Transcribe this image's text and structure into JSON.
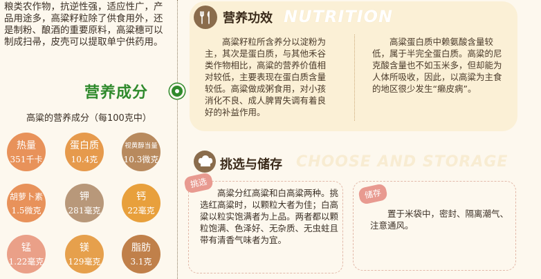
{
  "left": {
    "intro": "粮类农作物，抗逆性强，适应性广，产品用途多，高粱籽粒除了供食用外，还是制粉、酿酒的重要原料，高粱穗可以制成扫帚，皮壳可以提取单宁供药用。",
    "section_title": "营养成分",
    "per100": "高粱的营养成分（每100克中）"
  },
  "nutrients": [
    {
      "name": "热量",
      "value": "351千卡",
      "color": "#e8925a"
    },
    {
      "name": "蛋白质",
      "value": "10.4克",
      "color": "#e69a4c"
    },
    {
      "name": "视黄醇当量",
      "value": "10.3微克",
      "color": "#b88a5e"
    },
    {
      "name": "胡萝卜素",
      "value": "1.5微克",
      "color": "#e8925a"
    },
    {
      "name": "钾",
      "value": "281毫克",
      "color": "#b8987a"
    },
    {
      "name": "钙",
      "value": "22毫克",
      "color": "#e8a03c"
    },
    {
      "name": "锰",
      "value": "1.22毫克",
      "color": "#eaa088"
    },
    {
      "name": "镁",
      "value": "129毫克",
      "color": "#e6a04c"
    },
    {
      "name": "脂肪",
      "value": "3.1克",
      "color": "#c0804a"
    }
  ],
  "nutrition": {
    "heading": "营养功效",
    "heading_en": "NUTRITION",
    "col1": "高粱籽粒所含养分以淀粉为主，其次是蛋白质，与其他禾谷类作物相比，高粱的营养价值相对较低，主要表现在蛋白质含量较低。高粱做成粥食用，对小孩消化不良、成人脾胃失调有着良好的补益作用。",
    "col2": "高粱蛋白质中赖氨酸含量较低，属于半完全蛋白质。高粱的尼克酸含量也不如玉米多，但却能为人体所吸收，因此，以高粱为主食的地区很少发生“癞皮病”。"
  },
  "choose": {
    "heading": "挑选与储存",
    "heading_en": "CHOOSE AND STORAGE",
    "pick_tag": "挑选",
    "pick_text": "高粱分红高粱和白高粱两种。挑选红高粱时，以颗粒大者为佳；白高粱以粒实饱满者为上品。两者都以颗粒饱满、色泽好、无杂质、无虫蛀且带有清香气味者为宜。",
    "store_tag": "储存",
    "store_text": "置于米袋中，密封、隔离潮气、注意通风。"
  }
}
